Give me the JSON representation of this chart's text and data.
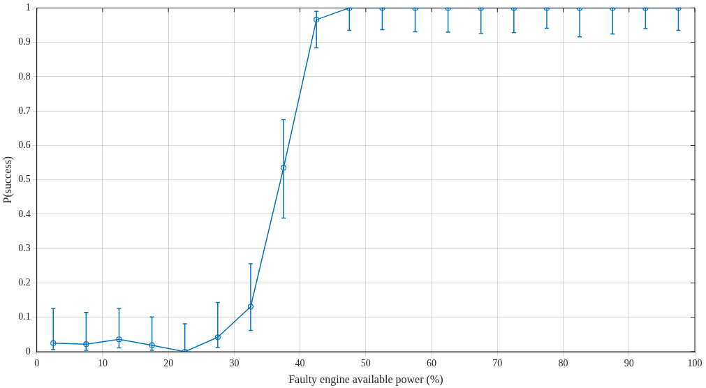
{
  "chart_data": {
    "type": "line",
    "xlabel": "Faulty engine available power (%)",
    "ylabel": "P(success)",
    "x": [
      2.5,
      7.5,
      12.5,
      17.5,
      22.5,
      27.5,
      32.5,
      37.5,
      42.5,
      47.5,
      52.5,
      57.5,
      62.5,
      67.5,
      72.5,
      77.5,
      82.5,
      87.5,
      92.5,
      97.5
    ],
    "values": [
      0.025,
      0.022,
      0.036,
      0.019,
      0,
      0.042,
      0.131,
      0.535,
      0.966,
      1,
      1,
      1,
      1,
      1,
      1,
      1,
      1,
      1,
      1,
      1
    ],
    "errors": [
      [
        0.006,
        0.126
      ],
      [
        0.004,
        0.114
      ],
      [
        0.011,
        0.126
      ],
      [
        0.004,
        0.101
      ],
      [
        0,
        0.081
      ],
      [
        0.012,
        0.143
      ],
      [
        0.062,
        0.256
      ],
      [
        0.389,
        0.675
      ],
      [
        0.884,
        0.99
      ],
      [
        0.935,
        1
      ],
      [
        0.937,
        1
      ],
      [
        0.931,
        1
      ],
      [
        0.93,
        1
      ],
      [
        0.926,
        1
      ],
      [
        0.928,
        1
      ],
      [
        0.941,
        1
      ],
      [
        0.916,
        1
      ],
      [
        0.924,
        1
      ],
      [
        0.94,
        1
      ],
      [
        0.935,
        1
      ]
    ],
    "color": "#0072bd",
    "marker": "circle",
    "line_style": "solid",
    "grid": true,
    "xlim": [
      0,
      100
    ],
    "xticks": [
      0,
      10,
      20,
      30,
      40,
      50,
      60,
      70,
      80,
      90,
      100
    ],
    "ylim": [
      0,
      1
    ],
    "yticks": [
      0,
      0.1,
      0.2,
      0.3,
      0.4,
      0.5,
      0.6,
      0.7,
      0.8,
      0.9,
      1
    ]
  }
}
